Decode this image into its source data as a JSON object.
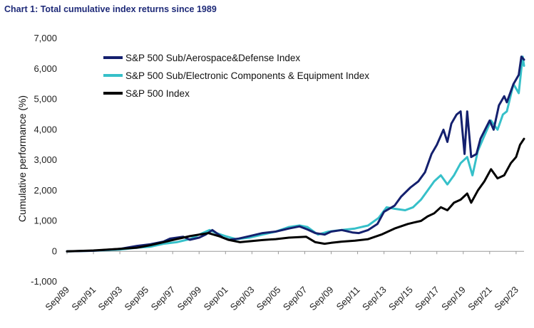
{
  "chart_data": {
    "type": "line",
    "title": "Chart 1: Total cumulative index returns since 1989",
    "xlabel": "",
    "ylabel": "Cumulative performance (%)",
    "ylim": [
      -1000,
      7000
    ],
    "yticks": [
      -1000,
      0,
      1000,
      2000,
      3000,
      4000,
      5000,
      6000,
      7000
    ],
    "ytick_labels": [
      "-1,000",
      "0",
      "1,000",
      "2,000",
      "3,000",
      "4,000",
      "5,000",
      "6,000",
      "7,000"
    ],
    "xlim": [
      1989.7,
      2024.3
    ],
    "xticks": [
      1989.7,
      1991.7,
      1993.7,
      1995.7,
      1997.7,
      1999.7,
      2001.7,
      2003.7,
      2005.7,
      2007.7,
      2009.7,
      2011.7,
      2013.7,
      2015.7,
      2017.7,
      2019.7,
      2021.7,
      2023.7
    ],
    "xtick_labels": [
      "Sep/89",
      "Sep/91",
      "Sep/93",
      "Sep/95",
      "Sep/97",
      "Sep/99",
      "Sep/01",
      "Sep/03",
      "Sep/05",
      "Sep/07",
      "Sep/09",
      "Sep/11",
      "Sep/13",
      "Sep/15",
      "Sep/17",
      "Sep/19",
      "Sep/21",
      "Sep/23"
    ],
    "legend_position": "top-left",
    "grid": false,
    "series": [
      {
        "name": "S&P 500 Sub/Aerospace&Defense Index",
        "color": "#14206e",
        "x": [
          1989.7,
          1991.7,
          1993.7,
          1995.0,
          1996.0,
          1997.0,
          1997.5,
          1998.5,
          1999.0,
          1999.7,
          2000.2,
          2000.7,
          2001.5,
          2002.0,
          2002.7,
          2003.5,
          2004.5,
          2005.5,
          2006.5,
          2007.3,
          2007.9,
          2008.5,
          2009.2,
          2009.7,
          2010.5,
          2011.3,
          2011.8,
          2012.5,
          2013.2,
          2013.7,
          2014.5,
          2015.0,
          2015.7,
          2016.3,
          2016.8,
          2017.3,
          2017.7,
          2018.2,
          2018.5,
          2018.8,
          2019.2,
          2019.5,
          2019.8,
          2020.0,
          2020.3,
          2020.7,
          2021.0,
          2021.7,
          2022.0,
          2022.4,
          2022.8,
          2023.0,
          2023.5,
          2023.9,
          2024.1,
          2024.3
        ],
        "values": [
          0,
          20,
          80,
          180,
          230,
          320,
          420,
          480,
          380,
          450,
          550,
          700,
          450,
          380,
          420,
          500,
          600,
          650,
          750,
          820,
          720,
          600,
          550,
          650,
          700,
          620,
          600,
          700,
          900,
          1300,
          1500,
          1800,
          2100,
          2300,
          2600,
          3200,
          3500,
          4000,
          3600,
          4200,
          4500,
          4600,
          3200,
          4600,
          3100,
          3200,
          3700,
          4300,
          4000,
          4800,
          5100,
          4900,
          5500,
          5800,
          6400,
          6300
        ]
      },
      {
        "name": "S&P 500 Sub/Electronic Components & Equipment Index",
        "color": "#36c0c9",
        "x": [
          1989.7,
          1991.7,
          1993.7,
          1995.0,
          1996.0,
          1997.0,
          1998.0,
          1999.0,
          1999.7,
          2000.5,
          2001.0,
          2001.7,
          2002.5,
          2003.5,
          2004.5,
          2005.5,
          2006.5,
          2007.3,
          2007.9,
          2008.7,
          2009.5,
          2010.5,
          2011.5,
          2012.5,
          2013.3,
          2013.9,
          2014.5,
          2015.3,
          2015.9,
          2016.5,
          2017.0,
          2017.5,
          2018.0,
          2018.5,
          2019.0,
          2019.5,
          2020.0,
          2020.4,
          2020.8,
          2021.3,
          2021.8,
          2022.3,
          2022.7,
          2023.0,
          2023.5,
          2023.9,
          2024.2,
          2024.3
        ],
        "values": [
          0,
          20,
          60,
          120,
          150,
          250,
          300,
          400,
          550,
          700,
          600,
          500,
          400,
          450,
          550,
          650,
          800,
          850,
          800,
          550,
          650,
          700,
          750,
          850,
          1100,
          1450,
          1400,
          1350,
          1450,
          1700,
          2000,
          2300,
          2500,
          2200,
          2500,
          2900,
          3100,
          2500,
          3300,
          3800,
          4300,
          4000,
          4500,
          4600,
          5500,
          5200,
          6400,
          6100
        ]
      },
      {
        "name": "S&P 500 Index",
        "color": "#000000",
        "x": [
          1989.7,
          1991.7,
          1993.7,
          1995.0,
          1996.0,
          1997.0,
          1998.0,
          1999.0,
          1999.7,
          2000.4,
          2001.2,
          2001.9,
          2002.8,
          2003.5,
          2004.5,
          2005.5,
          2006.5,
          2007.8,
          2008.5,
          2009.2,
          2009.7,
          2010.5,
          2011.5,
          2012.5,
          2013.5,
          2014.5,
          2015.5,
          2016.0,
          2016.5,
          2017.0,
          2017.5,
          2018.0,
          2018.5,
          2019.0,
          2019.5,
          2020.0,
          2020.3,
          2020.8,
          2021.3,
          2021.8,
          2022.3,
          2022.8,
          2023.3,
          2023.7,
          2024.0,
          2024.3
        ],
        "values": [
          0,
          30,
          80,
          120,
          200,
          300,
          400,
          500,
          550,
          600,
          500,
          380,
          300,
          330,
          370,
          400,
          450,
          480,
          300,
          250,
          280,
          320,
          350,
          400,
          550,
          750,
          900,
          950,
          1000,
          1150,
          1250,
          1450,
          1350,
          1600,
          1700,
          1900,
          1600,
          2000,
          2300,
          2700,
          2400,
          2500,
          2900,
          3100,
          3500,
          3700
        ]
      }
    ]
  }
}
